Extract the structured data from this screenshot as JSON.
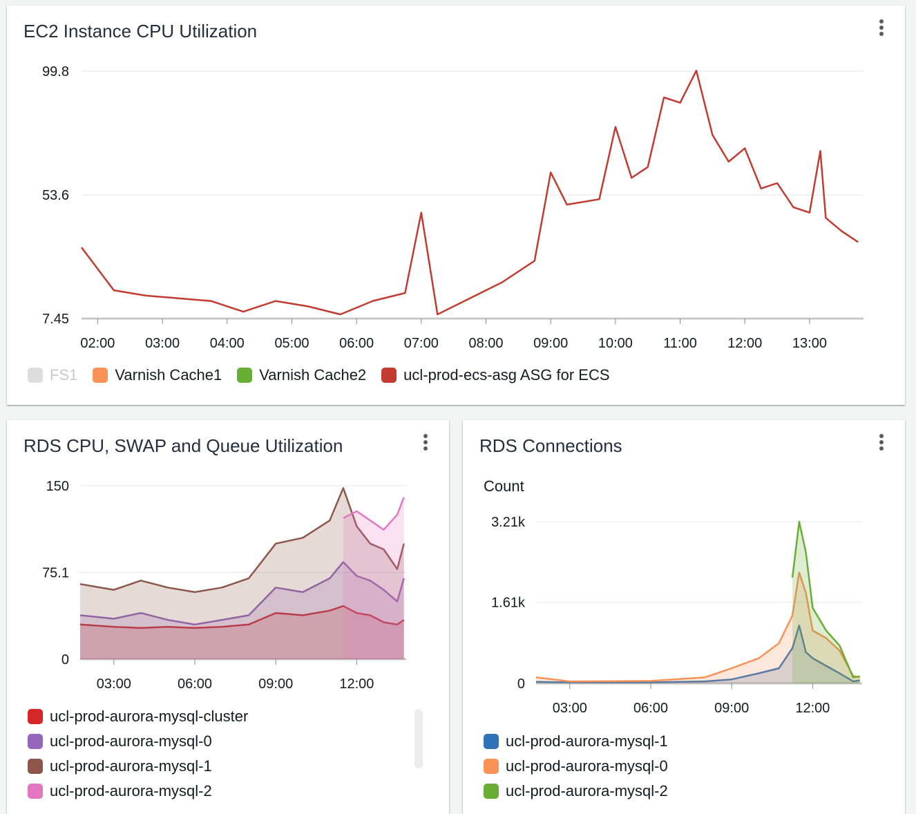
{
  "panels": {
    "ec2": {
      "title": "EC2 Instance CPU Utilization"
    },
    "rds_cpu": {
      "title": "RDS CPU, SWAP and Queue Utilization"
    },
    "rds_conn": {
      "title": "RDS Connections"
    }
  },
  "colors": {
    "red": "#d13212",
    "orange": "#f89256",
    "green": "#69ae34",
    "blue": "#2e73b8",
    "purple": "#9469d6",
    "brown": "#8c564b",
    "pink": "#e377c2",
    "grey": "#dddddd"
  },
  "chart_data": [
    {
      "type": "line",
      "title": "EC2 Instance CPU Utilization",
      "xlabel": "",
      "ylabel": "",
      "ylim": [
        7.45,
        99.8
      ],
      "yticks": [
        "7.45",
        "53.6",
        "99.8"
      ],
      "xticks": [
        "02:00",
        "03:00",
        "04:00",
        "05:00",
        "06:00",
        "07:00",
        "08:00",
        "09:00",
        "10:00",
        "11:00",
        "12:00",
        "13:00"
      ],
      "legend_position": "bottom",
      "legend": [
        {
          "name": "FS1",
          "color": "#dddddd",
          "hidden": true
        },
        {
          "name": "Varnish Cache1",
          "color": "#f89256"
        },
        {
          "name": "Varnish Cache2",
          "color": "#69ae34"
        },
        {
          "name": "ucl-prod-ecs-asg ASG for ECS",
          "color": "#c23a30"
        }
      ],
      "series": [
        {
          "name": "ucl-prod-ecs-asg ASG for ECS",
          "color": "#c23a30",
          "x": [
            "01:45",
            "02:15",
            "02:45",
            "03:15",
            "03:45",
            "04:15",
            "04:45",
            "05:15",
            "05:45",
            "06:15",
            "06:45",
            "07:00",
            "07:15",
            "07:45",
            "08:15",
            "08:45",
            "09:00",
            "09:15",
            "09:45",
            "10:00",
            "10:15",
            "10:30",
            "10:45",
            "11:00",
            "11:15",
            "11:30",
            "11:45",
            "12:00",
            "12:15",
            "12:30",
            "12:45",
            "13:00",
            "13:10",
            "13:15",
            "13:30",
            "13:45"
          ],
          "values": [
            34,
            18,
            16,
            15,
            14,
            10,
            14,
            12,
            9,
            14,
            17,
            47,
            9,
            15,
            21,
            29,
            62,
            50,
            52,
            79,
            60,
            64,
            90,
            88,
            100,
            76,
            66,
            71,
            56,
            58,
            49,
            47,
            70,
            45,
            40,
            36
          ]
        }
      ]
    },
    {
      "type": "area",
      "title": "RDS CPU, SWAP and Queue Utilization",
      "xlabel": "",
      "ylabel": "",
      "ylim": [
        0,
        150
      ],
      "yticks": [
        "0",
        "75.1",
        "150"
      ],
      "xticks": [
        "03:00",
        "06:00",
        "09:00",
        "12:00"
      ],
      "legend_position": "bottom",
      "series": [
        {
          "name": "ucl-prod-aurora-mysql-cluster",
          "color": "#d62728",
          "x": [
            "01:45",
            "03:00",
            "04:00",
            "05:00",
            "06:00",
            "07:00",
            "08:00",
            "09:00",
            "10:00",
            "11:00",
            "11:30",
            "12:00",
            "12:30",
            "13:00",
            "13:30",
            "13:45"
          ],
          "values": [
            30,
            28,
            27,
            28,
            27,
            28,
            30,
            40,
            38,
            42,
            46,
            40,
            38,
            32,
            30,
            34
          ]
        },
        {
          "name": "ucl-prod-aurora-mysql-0",
          "color": "#9467bd",
          "x": [
            "01:45",
            "03:00",
            "04:00",
            "05:00",
            "06:00",
            "07:00",
            "08:00",
            "09:00",
            "10:00",
            "11:00",
            "11:30",
            "12:00",
            "12:30",
            "13:00",
            "13:30",
            "13:45"
          ],
          "values": [
            38,
            35,
            40,
            34,
            30,
            34,
            38,
            62,
            58,
            70,
            84,
            72,
            68,
            60,
            50,
            70
          ]
        },
        {
          "name": "ucl-prod-aurora-mysql-1",
          "color": "#8c564b",
          "x": [
            "01:45",
            "03:00",
            "04:00",
            "05:00",
            "06:00",
            "07:00",
            "08:00",
            "09:00",
            "10:00",
            "11:00",
            "11:30",
            "12:00",
            "12:30",
            "13:00",
            "13:30",
            "13:45"
          ],
          "values": [
            65,
            60,
            68,
            62,
            58,
            62,
            70,
            100,
            105,
            120,
            148,
            115,
            100,
            95,
            78,
            100
          ]
        },
        {
          "name": "ucl-prod-aurora-mysql-2",
          "color": "#e377c2",
          "x": [
            "11:30",
            "12:00",
            "12:30",
            "13:00",
            "13:30",
            "13:45"
          ],
          "values": [
            122,
            128,
            120,
            112,
            125,
            140
          ]
        }
      ]
    },
    {
      "type": "area",
      "title": "RDS Connections",
      "xlabel": "",
      "ylabel": "Count",
      "ylim": [
        0,
        3210
      ],
      "yticks": [
        "0",
        "1.61k",
        "3.21k"
      ],
      "xticks": [
        "03:00",
        "06:00",
        "09:00",
        "12:00"
      ],
      "legend_position": "bottom",
      "series": [
        {
          "name": "ucl-prod-aurora-mysql-1",
          "color": "#2e73b8",
          "x": [
            "01:45",
            "03:00",
            "06:00",
            "08:00",
            "09:00",
            "10:00",
            "10:45",
            "11:15",
            "11:30",
            "11:45",
            "12:00",
            "12:30",
            "13:00",
            "13:30",
            "13:45"
          ],
          "values": [
            30,
            20,
            20,
            40,
            80,
            200,
            300,
            700,
            1150,
            620,
            500,
            350,
            200,
            40,
            60
          ]
        },
        {
          "name": "ucl-prod-aurora-mysql-0",
          "color": "#f89256",
          "x": [
            "01:45",
            "03:00",
            "06:00",
            "08:00",
            "09:00",
            "10:00",
            "10:45",
            "11:15",
            "11:30",
            "11:45",
            "12:00",
            "12:30",
            "13:00",
            "13:30",
            "13:45"
          ],
          "values": [
            120,
            40,
            50,
            120,
            300,
            500,
            800,
            1350,
            2200,
            1800,
            1050,
            900,
            650,
            150,
            120
          ]
        },
        {
          "name": "ucl-prod-aurora-mysql-2",
          "color": "#69ae34",
          "x": [
            "11:15",
            "11:30",
            "11:45",
            "12:00",
            "12:30",
            "13:00",
            "13:30",
            "13:45"
          ],
          "values": [
            2100,
            3210,
            2600,
            1500,
            1050,
            750,
            120,
            140
          ]
        }
      ]
    }
  ]
}
